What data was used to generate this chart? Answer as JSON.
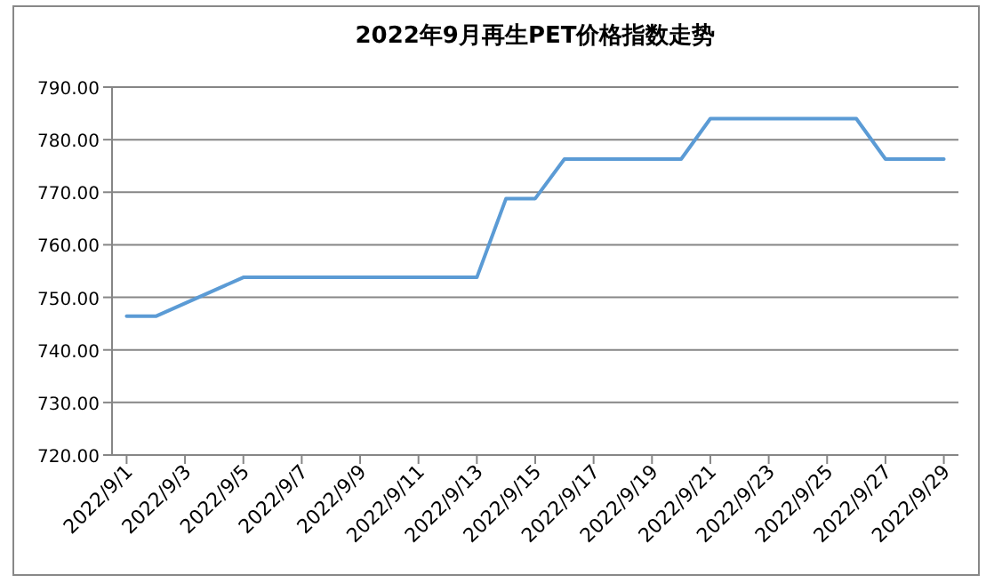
{
  "chart_data": {
    "type": "line",
    "title": "2022年9月再生PET价格指数走势",
    "x": [
      "2022-09-01",
      "2022-09-02",
      "2022-09-05",
      "2022-09-13",
      "2022-09-14",
      "2022-09-15",
      "2022-09-16",
      "2022-09-20",
      "2022-09-21",
      "2022-09-26",
      "2022-09-27",
      "2022-09-29"
    ],
    "series": [
      {
        "color": "#5b9bd5",
        "values": [
          746.4,
          746.4,
          753.8,
          753.8,
          768.8,
          768.8,
          776.3,
          776.3,
          784.0,
          784.0,
          776.3,
          776.3
        ]
      }
    ],
    "xlim": [
      "2022-08-31T12:00",
      "2022-09-29T12:00"
    ],
    "xticks": [
      {
        "value": "2022-09-01",
        "label": "2022/9/1"
      },
      {
        "value": "2022-09-03",
        "label": "2022/9/3"
      },
      {
        "value": "2022-09-05",
        "label": "2022/9/5"
      },
      {
        "value": "2022-09-07",
        "label": "2022/9/7"
      },
      {
        "value": "2022-09-09",
        "label": "2022/9/9"
      },
      {
        "value": "2022-09-11",
        "label": "2022/9/11"
      },
      {
        "value": "2022-09-13",
        "label": "2022/9/13"
      },
      {
        "value": "2022-09-15",
        "label": "2022/9/15"
      },
      {
        "value": "2022-09-17",
        "label": "2022/9/17"
      },
      {
        "value": "2022-09-19",
        "label": "2022/9/19"
      },
      {
        "value": "2022-09-21",
        "label": "2022/9/21"
      },
      {
        "value": "2022-09-23",
        "label": "2022/9/23"
      },
      {
        "value": "2022-09-25",
        "label": "2022/9/25"
      },
      {
        "value": "2022-09-27",
        "label": "2022/9/27"
      },
      {
        "value": "2022-09-29",
        "label": "2022/9/29"
      }
    ],
    "ylim": [
      720,
      790
    ],
    "yticks": [
      {
        "value": 720,
        "label": "720.00"
      },
      {
        "value": 730,
        "label": "730.00"
      },
      {
        "value": 740,
        "label": "740.00"
      },
      {
        "value": 750,
        "label": "750.00"
      },
      {
        "value": 760,
        "label": "760.00"
      },
      {
        "value": 770,
        "label": "770.00"
      },
      {
        "value": 780,
        "label": "780.00"
      },
      {
        "value": 790,
        "label": "790.00"
      }
    ],
    "grid": "y",
    "marker": "none",
    "line_style": "solid"
  }
}
